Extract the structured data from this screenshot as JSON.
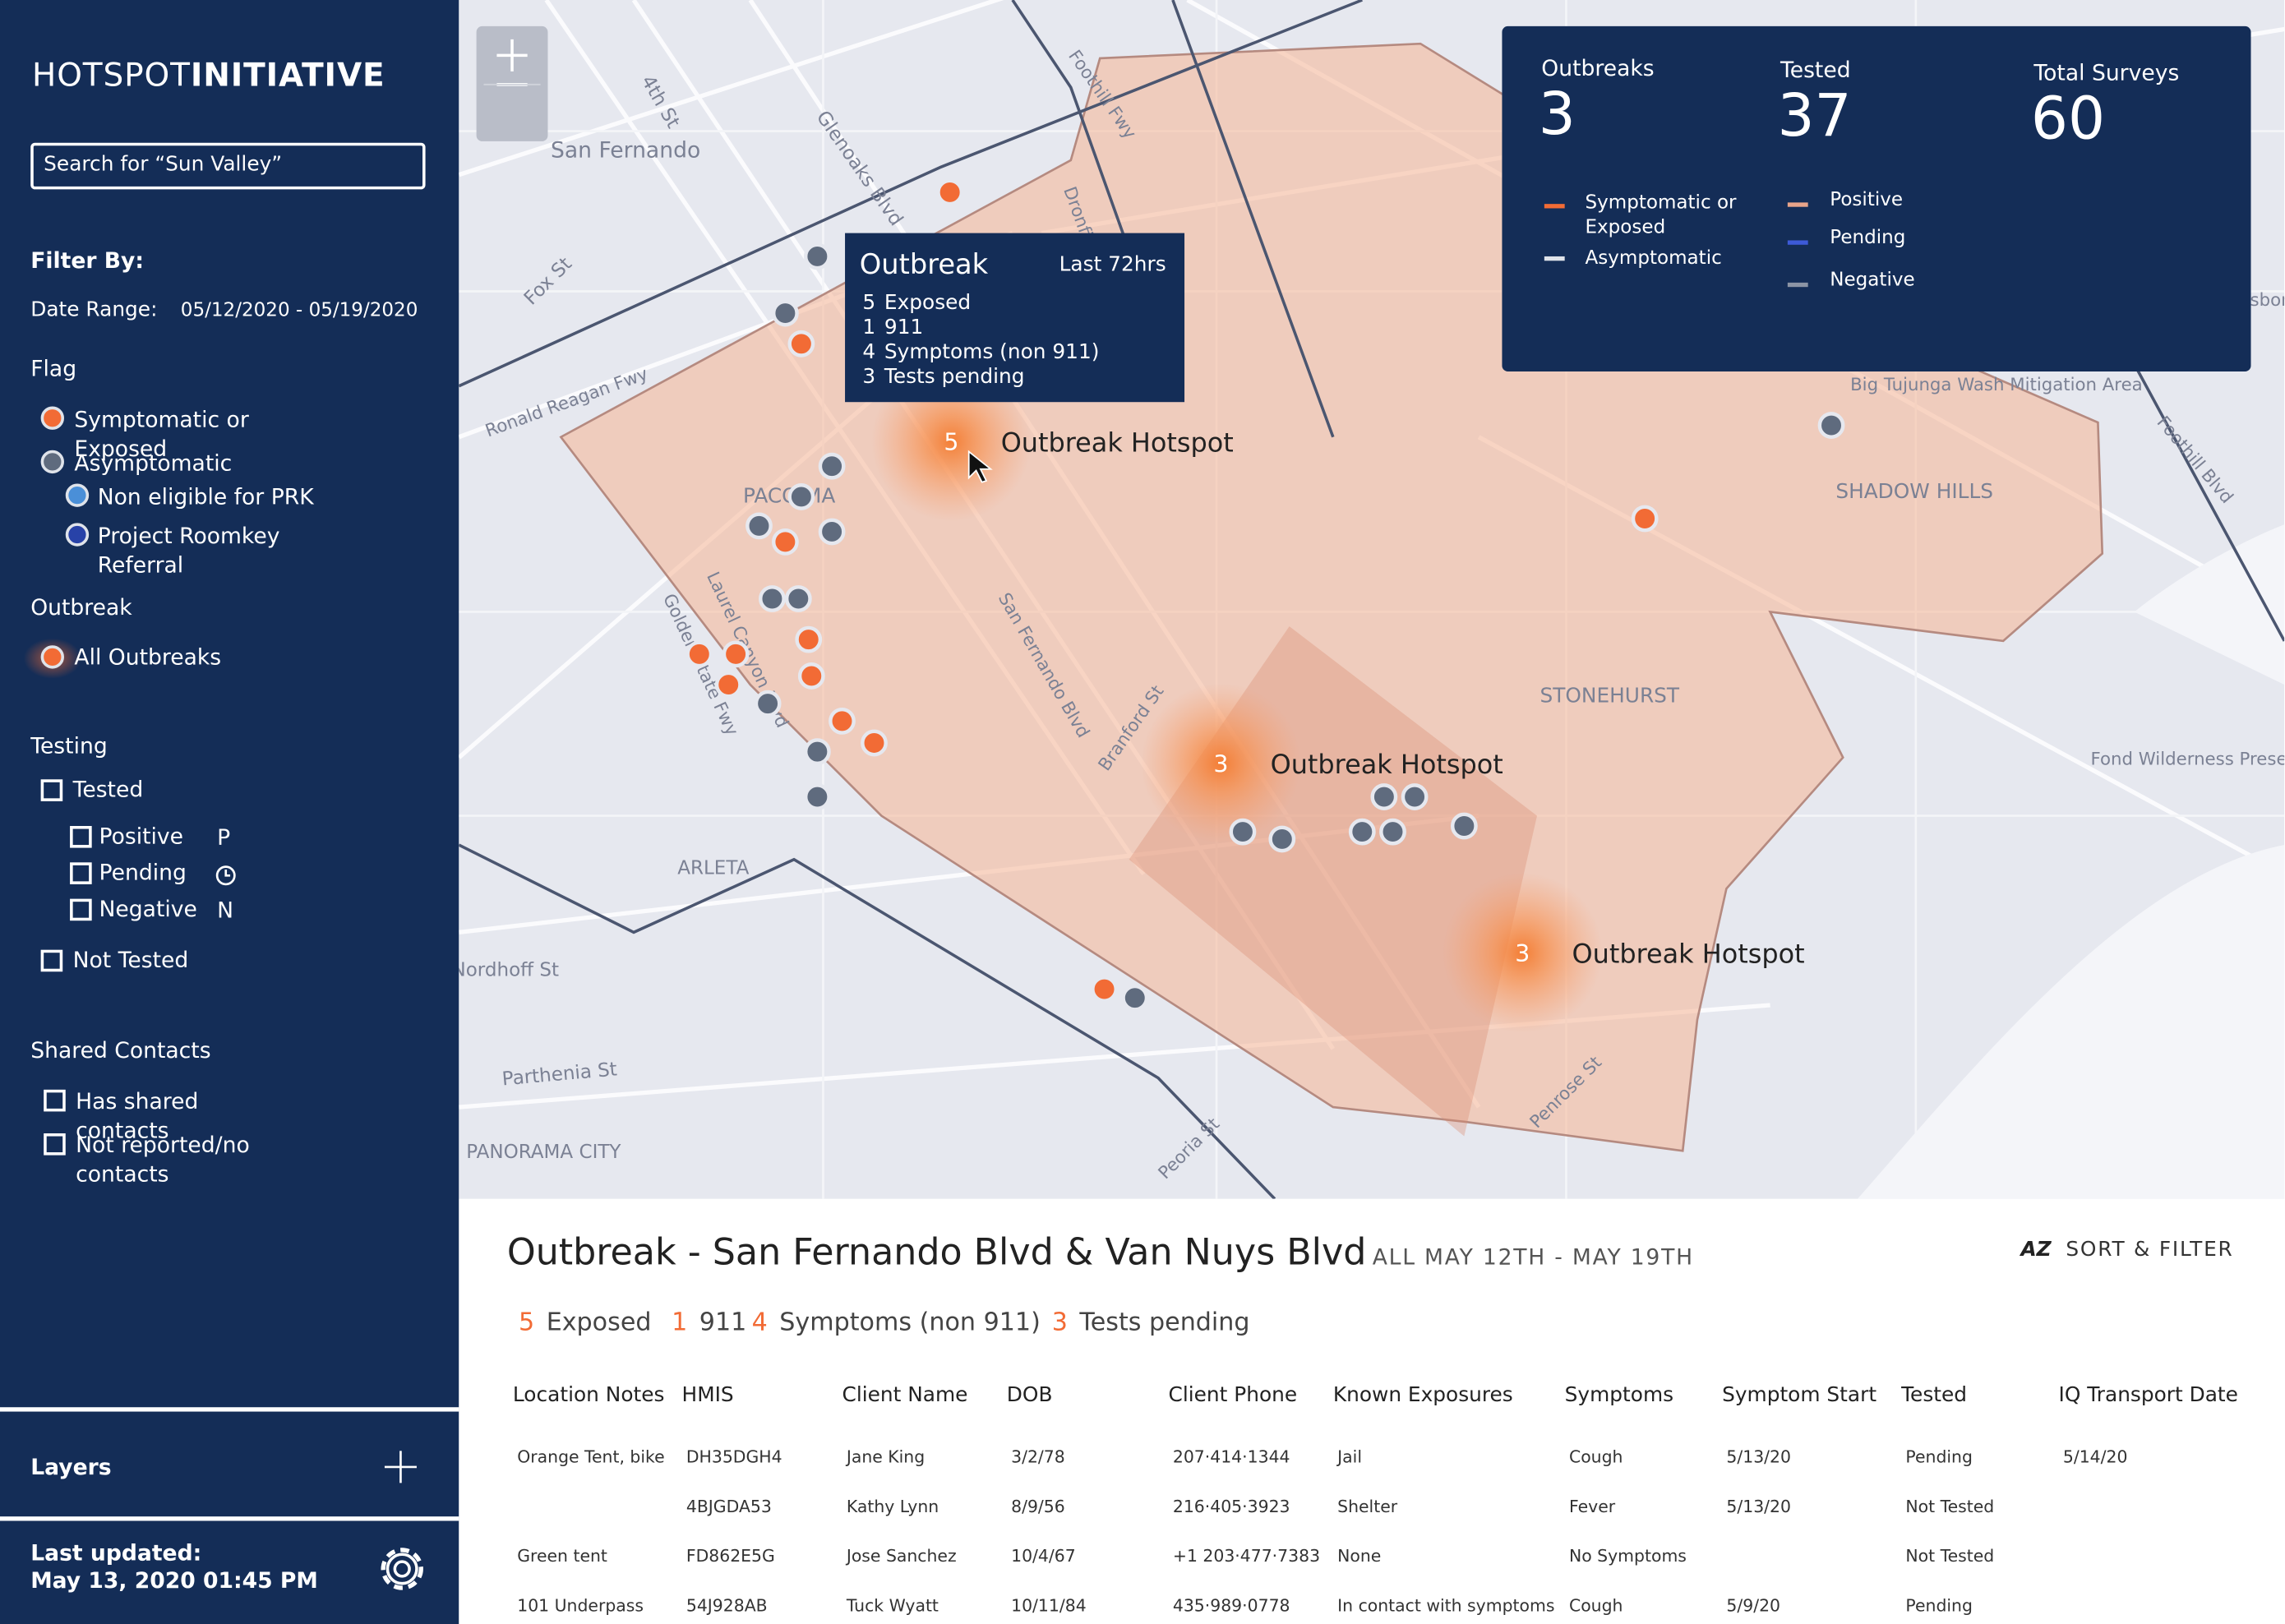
{
  "sidebar": {
    "brand_light": "HOTSPOT",
    "brand_bold": "INITIATIVE",
    "search_placeholder": "Search for “Sun Valley”",
    "filter_by": "Filter By:",
    "date_range_label": "Date Range:",
    "date_range": "05/12/2020 - 05/19/2020",
    "flag_heading": "Flag",
    "flags": [
      "Symptomatic or Exposed",
      "Asymptomatic",
      "Non eligible for PRK",
      "Project Roomkey Referral"
    ],
    "outbreak_heading": "Outbreak",
    "outbreak_option": "All Outbreaks",
    "testing_heading": "Testing",
    "tested": "Tested",
    "positive": "Positive",
    "positive_icon": "P",
    "pending": "Pending",
    "negative": "Negative",
    "negative_icon": "N",
    "not_tested": "Not Tested",
    "shared_heading": "Shared Contacts",
    "shared": [
      "Has shared contacts",
      "Not reported/no contacts"
    ],
    "layers": "Layers",
    "last_updated_label": "Last updated:",
    "last_updated": "May 13, 2020 01:45 PM"
  },
  "map": {
    "labels": [
      "San Fernando",
      "4th St",
      "Glenoaks Blvd",
      "Foothill Fwy",
      "Dronfield St",
      "Fox St",
      "Ronald Reagan Fwy",
      "PACOIMA",
      "Laurel Canyon Blvd",
      "Golden State Fwy",
      "San Fernando Blvd",
      "Branford St",
      "ARLETA",
      "Parthenia St",
      "PANORAMA CITY",
      "Peoria St",
      "Penrose St",
      "STONEHURST",
      "SHADOW HILLS",
      "Big Tujunga Wash Mitigation Area",
      "Foothill Blvd",
      "Fond Wilderness Preserve",
      "Osborne St",
      "Nordhoff St"
    ],
    "hotspots": [
      {
        "count": 5,
        "label": "Outbreak Hotspot"
      },
      {
        "count": 3,
        "label": "Outbreak Hotspot"
      },
      {
        "count": 3,
        "label": "Outbreak Hotspot"
      }
    ]
  },
  "tooltip": {
    "title": "Outbreak",
    "period": "Last 72hrs",
    "lines": [
      {
        "count": 5,
        "text": "Exposed"
      },
      {
        "count": 1,
        "text": "911"
      },
      {
        "count": 4,
        "text": "Symptoms (non 911)"
      },
      {
        "count": 3,
        "text": "Tests pending"
      }
    ]
  },
  "stats": {
    "items": [
      {
        "label": "Outbreaks",
        "value": 3
      },
      {
        "label": "Tested",
        "value": 37
      },
      {
        "label": "Total Surveys",
        "value": 60
      }
    ],
    "legend_left": [
      "Symptomatic or Exposed",
      "Asymptomatic"
    ],
    "legend_right": [
      "Positive",
      "Pending",
      "Negative"
    ]
  },
  "panel": {
    "title": "Outbreak - San Fernando Blvd & Van Nuys Blvd",
    "period": "ALL MAY 12TH - MAY 19TH",
    "sort_icon": "AZ",
    "sort": "SORT & FILTER",
    "summary": [
      {
        "count": 5,
        "text": "Exposed"
      },
      {
        "count": 1,
        "text": "911"
      },
      {
        "count": 4,
        "text": "Symptoms (non 911)"
      },
      {
        "count": 3,
        "text": "Tests pending"
      }
    ],
    "table": {
      "columns": [
        "Location Notes",
        "HMIS",
        "Client Name",
        "DOB",
        "Client Phone",
        "Known Exposures",
        "Symptoms",
        "Symptom Start",
        "Tested",
        "IQ Transport Date"
      ],
      "rows": [
        [
          "Orange Tent, bike",
          "DH35DGH4",
          "Jane King",
          "3/2/78",
          "207·414·1344",
          "Jail",
          "Cough",
          "5/13/20",
          "Pending",
          "5/14/20"
        ],
        [
          null,
          "4BJGDA53",
          "Kathy Lynn",
          "8/9/56",
          "216·405·3923",
          "Shelter",
          "Fever",
          "5/13/20",
          "Not Tested",
          null
        ],
        [
          "Green tent",
          "FD862E5G",
          "Jose Sanchez",
          "10/4/67",
          "+1 203·477·7383",
          "None",
          "No Symptoms",
          null,
          "Not Tested",
          null
        ],
        [
          "101 Underpass",
          "54J928AB",
          "Tuck Wyatt",
          "10/11/84",
          "435·989·0778",
          "In contact with symptoms",
          "Cough",
          "5/9/20",
          "Pending",
          null
        ]
      ]
    }
  }
}
